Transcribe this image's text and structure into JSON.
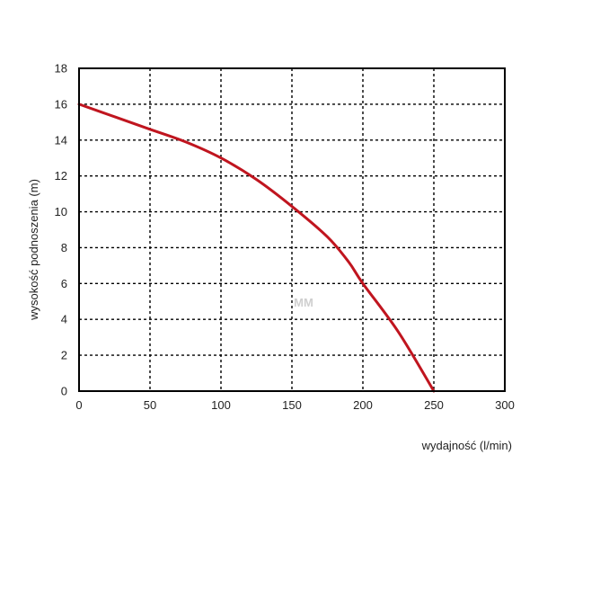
{
  "chart_data": {
    "type": "line",
    "xlabel": "wydajność (l/min)",
    "ylabel": "wysokość podnoszenia (m)",
    "xlim": [
      0,
      300
    ],
    "ylim": [
      0,
      18
    ],
    "x_ticks": [
      0,
      50,
      100,
      150,
      200,
      250,
      300
    ],
    "y_ticks": [
      0,
      2,
      4,
      6,
      8,
      10,
      12,
      14,
      16,
      18
    ],
    "grid": true,
    "watermark": "MM",
    "series": [
      {
        "color": "#c0151f",
        "x": [
          0,
          25,
          50,
          75,
          100,
          125,
          150,
          175,
          190,
          200,
          225,
          250
        ],
        "y": [
          16,
          15.3,
          14.6,
          13.9,
          13,
          11.8,
          10.3,
          8.6,
          7.2,
          6,
          3.3,
          0
        ]
      }
    ]
  }
}
